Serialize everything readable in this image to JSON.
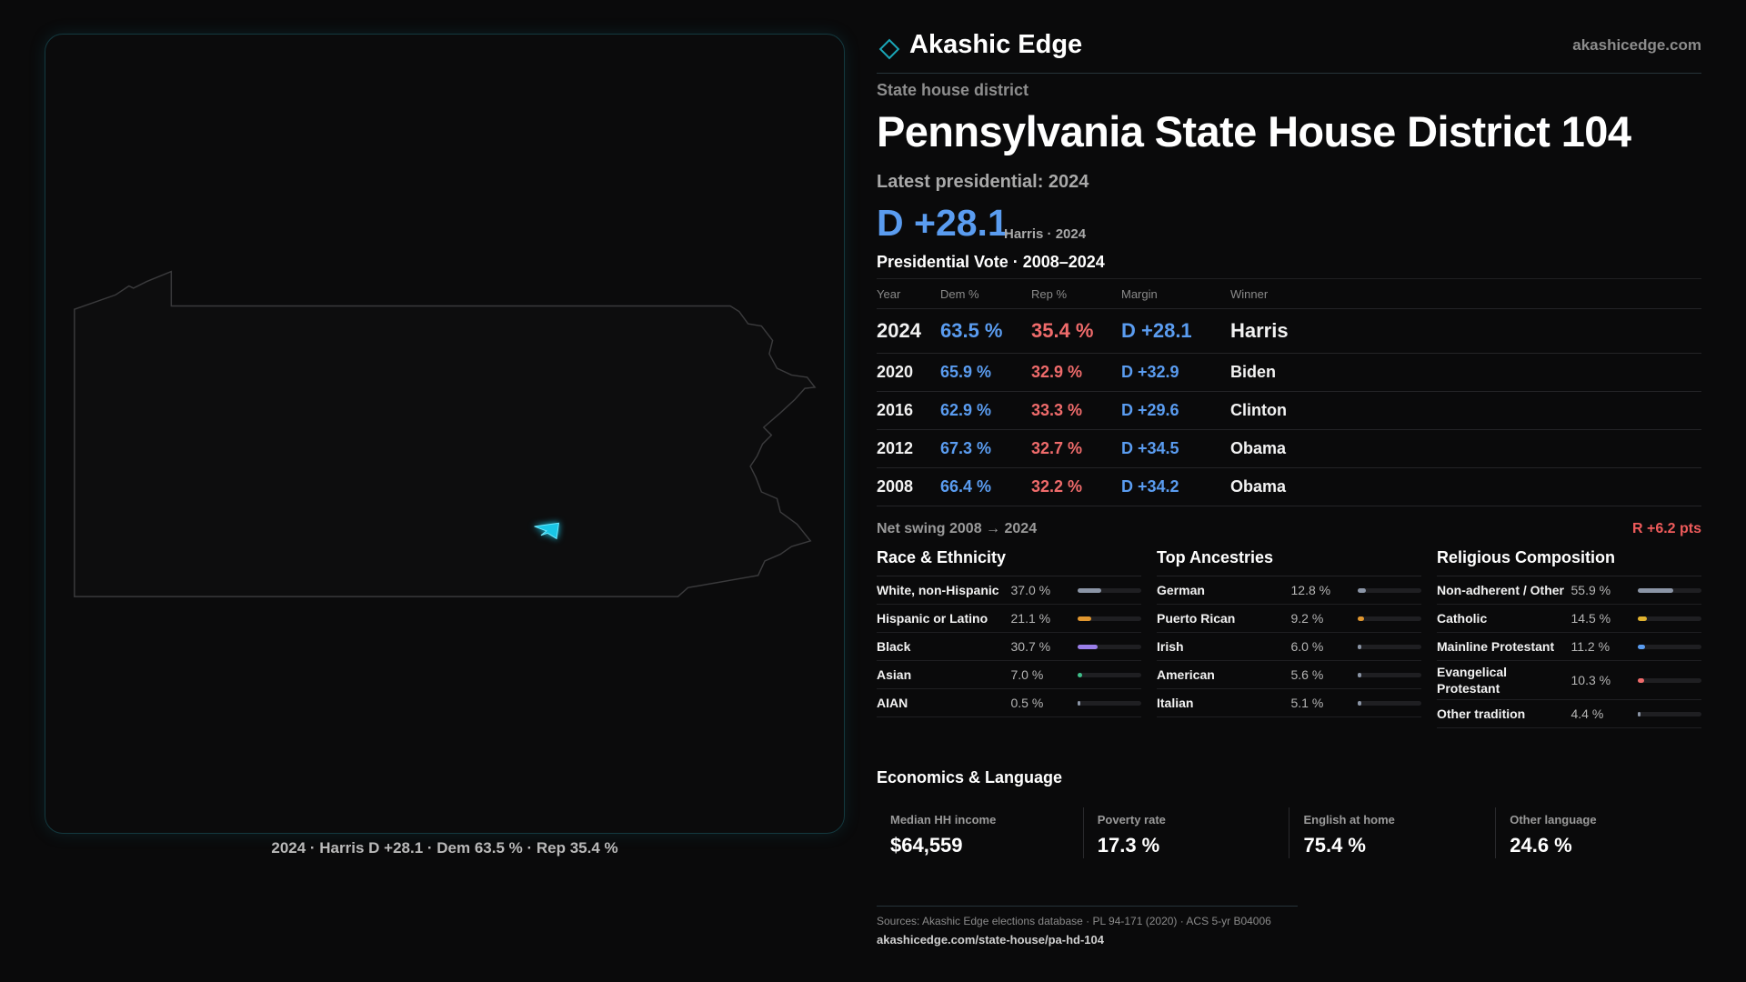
{
  "header": {
    "brand": "Akashic Edge",
    "site": "akashicedge.com"
  },
  "map": {
    "caption": "2024 · Harris D +28.1 · Dem 63.5 % · Rep 35.4 %"
  },
  "district": {
    "kind": "State house district",
    "title": "Pennsylvania State House District 104",
    "latest_label": "Latest presidential: 2024",
    "margin": "D +28.1",
    "margin_note": "Harris · 2024"
  },
  "vote_table": {
    "title": "Presidential Vote · 2008–2024",
    "columns": [
      "Year",
      "Dem %",
      "Rep %",
      "Margin",
      "Winner"
    ],
    "rows": [
      [
        "2024",
        "63.5 %",
        "35.4 %",
        "D +28.1",
        "Harris"
      ],
      [
        "2020",
        "65.9 %",
        "32.9 %",
        "D +32.9",
        "Biden"
      ],
      [
        "2016",
        "62.9 %",
        "33.3 %",
        "D +29.6",
        "Clinton"
      ],
      [
        "2012",
        "67.3 %",
        "32.7 %",
        "D +34.5",
        "Obama"
      ],
      [
        "2008",
        "66.4 %",
        "32.2 %",
        "D +34.2",
        "Obama"
      ]
    ]
  },
  "swing": {
    "label": "Net swing 2008 → 2024",
    "value": "R +6.2 pts"
  },
  "race": {
    "title": "Race & Ethnicity",
    "rows": [
      {
        "name": "White, non-Hispanic",
        "label": "37.0 %",
        "value": 37.0,
        "color": "#8b95a6"
      },
      {
        "name": "Hispanic or Latino",
        "label": "21.1 %",
        "value": 21.1,
        "color": "#e0962f"
      },
      {
        "name": "Black",
        "label": "30.7 %",
        "value": 30.7,
        "color": "#9a7ee8"
      },
      {
        "name": "Asian",
        "label": "7.0 %",
        "value": 7.0,
        "color": "#3fbf8a"
      },
      {
        "name": "AIAN",
        "label": "0.5 %",
        "value": 0.5,
        "color": "#8b95a6"
      }
    ]
  },
  "ancestry": {
    "title": "Top Ancestries",
    "rows": [
      {
        "name": "German",
        "label": "12.8 %",
        "value": 12.8,
        "color": "#8b95a6"
      },
      {
        "name": "Puerto Rican",
        "label": "9.2 %",
        "value": 9.2,
        "color": "#e0962f"
      },
      {
        "name": "Irish",
        "label": "6.0 %",
        "value": 6.0,
        "color": "#8b95a6"
      },
      {
        "name": "American",
        "label": "5.6 %",
        "value": 5.6,
        "color": "#8b95a6"
      },
      {
        "name": "Italian",
        "label": "5.1 %",
        "value": 5.1,
        "color": "#8b95a6"
      }
    ]
  },
  "religion": {
    "title": "Religious Composition",
    "rows": [
      {
        "name": "Non-adherent / Other",
        "label": "55.9 %",
        "value": 55.9,
        "color": "#8b95a6"
      },
      {
        "name": "Catholic",
        "label": "14.5 %",
        "value": 14.5,
        "color": "#e0b22f"
      },
      {
        "name": "Mainline Protestant",
        "label": "11.2 %",
        "value": 11.2,
        "color": "#5a9cf0"
      },
      {
        "name": "Evangelical Protestant",
        "label": "10.3 %",
        "value": 10.3,
        "color": "#ef6b6b"
      },
      {
        "name": "Other tradition",
        "label": "4.4 %",
        "value": 4.4,
        "color": "#8b95a6"
      }
    ]
  },
  "economics": {
    "title": "Economics & Language",
    "stats": [
      {
        "label": "Median HH income",
        "value": "$64,559"
      },
      {
        "label": "Poverty rate",
        "value": "17.3 %"
      },
      {
        "label": "English at home",
        "value": "75.4 %"
      },
      {
        "label": "Other language",
        "value": "24.6 %"
      }
    ]
  },
  "footer": {
    "sources": "Sources: Akashic Edge elections database · PL 94-171 (2020) · ACS 5-yr B04006",
    "url": "akashicedge.com/state-house/pa-hd-104"
  }
}
